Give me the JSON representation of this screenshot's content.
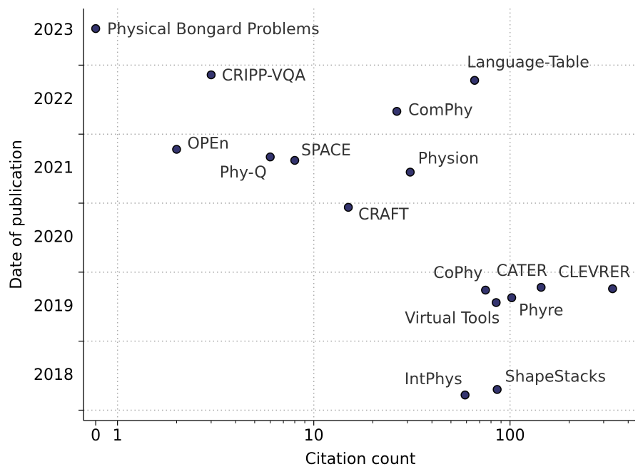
{
  "chart_data": {
    "type": "scatter",
    "xlabel": "Citation count",
    "ylabel": "Date of publication",
    "xscale": "symlog",
    "linthresh": 1,
    "linscale": 0.1,
    "xlim": [
      -0.56,
      434
    ],
    "ylim": [
      2017.85,
      2023.82
    ],
    "xticks": [
      0,
      1,
      10,
      100
    ],
    "xminorticks": [
      2,
      3,
      4,
      5,
      6,
      7,
      8,
      9,
      20,
      30,
      40,
      50,
      60,
      70,
      80,
      90,
      200,
      300,
      400
    ],
    "xgrid": [
      1,
      10,
      100
    ],
    "yticks": [
      {
        "value": 2018.5,
        "label": "2018"
      },
      {
        "value": 2019.5,
        "label": "2019"
      },
      {
        "value": 2020.5,
        "label": "2020"
      },
      {
        "value": 2021.5,
        "label": "2021"
      },
      {
        "value": 2022.5,
        "label": "2022"
      },
      {
        "value": 2023.5,
        "label": "2023"
      }
    ],
    "ygrid": [
      2018,
      2019,
      2020,
      2021,
      2022,
      2023
    ],
    "grid": true,
    "color": "#34346e",
    "labels": [
      "Physical Bongard Problems",
      "CRIPP-VQA",
      "Language-Table",
      "ComPhy",
      "OPEn",
      "Phy-Q",
      "SPACE",
      "Physion",
      "CRAFT",
      "CoPhy",
      "Virtual Tools",
      "Phyre",
      "CATER",
      "CLEVRER",
      "IntPhys",
      "ShapeStacks"
    ],
    "x": [
      0,
      3,
      66,
      26.5,
      2,
      6,
      8,
      31,
      15,
      75,
      85,
      102,
      144,
      333,
      59,
      86
    ],
    "values": [
      2023.53,
      2022.86,
      2022.78,
      2022.33,
      2021.78,
      2021.67,
      2021.62,
      2021.45,
      2020.94,
      2019.74,
      2019.56,
      2019.63,
      2019.78,
      2019.76,
      2018.22,
      2018.3
    ]
  }
}
